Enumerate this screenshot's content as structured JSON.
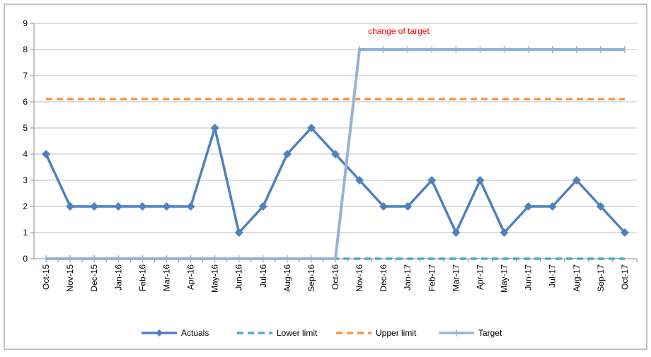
{
  "chart_data": {
    "type": "line",
    "annotation": "change of target",
    "categories": [
      "Oct-15",
      "Nov-15",
      "Dec-15",
      "Jan-16",
      "Feb-16",
      "Mar-16",
      "Apr-16",
      "May-16",
      "Jun-16",
      "Jul-16",
      "Aug-16",
      "Sep-16",
      "Oct-16",
      "Nov-16",
      "Dec-16",
      "Jan-17",
      "Feb-17",
      "Mar-17",
      "Apr-17",
      "May-17",
      "Jun-17",
      "Jul-17",
      "Aug-17",
      "Sep-17",
      "Oct-17"
    ],
    "series": [
      {
        "name": "Actuals",
        "color": "#4f81bd",
        "line_style": "solid",
        "marker": "diamond",
        "values": [
          4,
          2,
          2,
          2,
          2,
          2,
          2,
          5,
          1,
          2,
          4,
          5,
          4,
          3,
          2,
          2,
          3,
          1,
          3,
          1,
          2,
          2,
          3,
          2,
          1
        ]
      },
      {
        "name": "Lower limit",
        "color": "#4bacc6",
        "line_style": "dashed",
        "marker": "none",
        "values": [
          0,
          0,
          0,
          0,
          0,
          0,
          0,
          0,
          0,
          0,
          0,
          0,
          0,
          0,
          0,
          0,
          0,
          0,
          0,
          0,
          0,
          0,
          0,
          0,
          0
        ]
      },
      {
        "name": "Upper limit",
        "color": "#f79646",
        "line_style": "dashed",
        "marker": "none",
        "values": [
          6.1,
          6.1,
          6.1,
          6.1,
          6.1,
          6.1,
          6.1,
          6.1,
          6.1,
          6.1,
          6.1,
          6.1,
          6.1,
          6.1,
          6.1,
          6.1,
          6.1,
          6.1,
          6.1,
          6.1,
          6.1,
          6.1,
          6.1,
          6.1,
          6.1
        ]
      },
      {
        "name": "Target",
        "color": "#95b3d7",
        "line_style": "solid",
        "marker": "plus",
        "values": [
          0,
          0,
          0,
          0,
          0,
          0,
          0,
          0,
          0,
          0,
          0,
          0,
          0,
          8,
          8,
          8,
          8,
          8,
          8,
          8,
          8,
          8,
          8,
          8,
          8
        ]
      }
    ],
    "ylim": [
      0,
      9
    ],
    "yticks": [
      0,
      1,
      2,
      3,
      4,
      5,
      6,
      7,
      8,
      9
    ],
    "grid": true,
    "legend": "bottom"
  }
}
